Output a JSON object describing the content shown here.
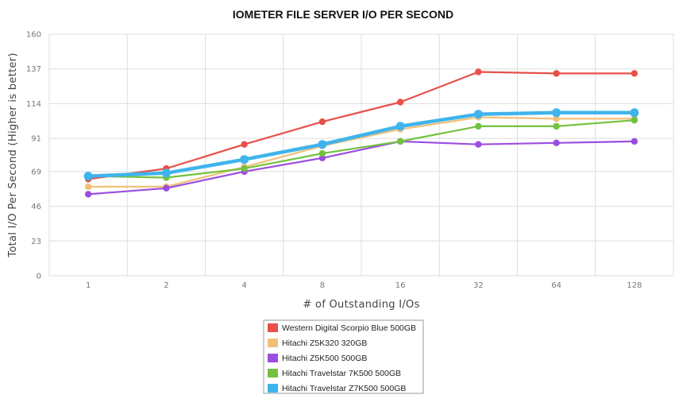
{
  "chart_data": {
    "type": "line",
    "title": "IOMETER FILE SERVER I/O PER SECOND",
    "xlabel": "# of Outstanding I/Os",
    "ylabel": "Total I/O Per Second (Higher is better)",
    "categories": [
      "1",
      "2",
      "4",
      "8",
      "16",
      "32",
      "64",
      "128"
    ],
    "ylim": [
      0,
      160
    ],
    "yticks": [
      0,
      23,
      46,
      69,
      91,
      114,
      137,
      160
    ],
    "grid": true,
    "legend_position": "bottom",
    "series": [
      {
        "name": "Western Digital Scorpio Blue 500GB",
        "color": "#e8504a",
        "emphasis": false,
        "values": [
          64,
          71,
          87,
          102,
          115,
          135,
          134,
          134
        ]
      },
      {
        "name": "Hitachi Z5K320 320GB",
        "color": "#f0c07a",
        "emphasis": false,
        "values": [
          59,
          59,
          72,
          86,
          97,
          105,
          104,
          104
        ]
      },
      {
        "name": "Hitachi Z5K500 500GB",
        "color": "#9b4de0",
        "emphasis": false,
        "values": [
          54,
          58,
          69,
          78,
          89,
          87,
          88,
          89
        ]
      },
      {
        "name": "Hitachi Travelstar 7K500 500GB",
        "color": "#73c13f",
        "emphasis": false,
        "values": [
          66,
          65,
          71,
          81,
          89,
          99,
          99,
          103
        ]
      },
      {
        "name": "Hitachi Travelstar Z7K500 500GB",
        "color": "#3fb4ec",
        "emphasis": true,
        "values": [
          66,
          68,
          77,
          87,
          99,
          107,
          108,
          108
        ]
      }
    ]
  }
}
